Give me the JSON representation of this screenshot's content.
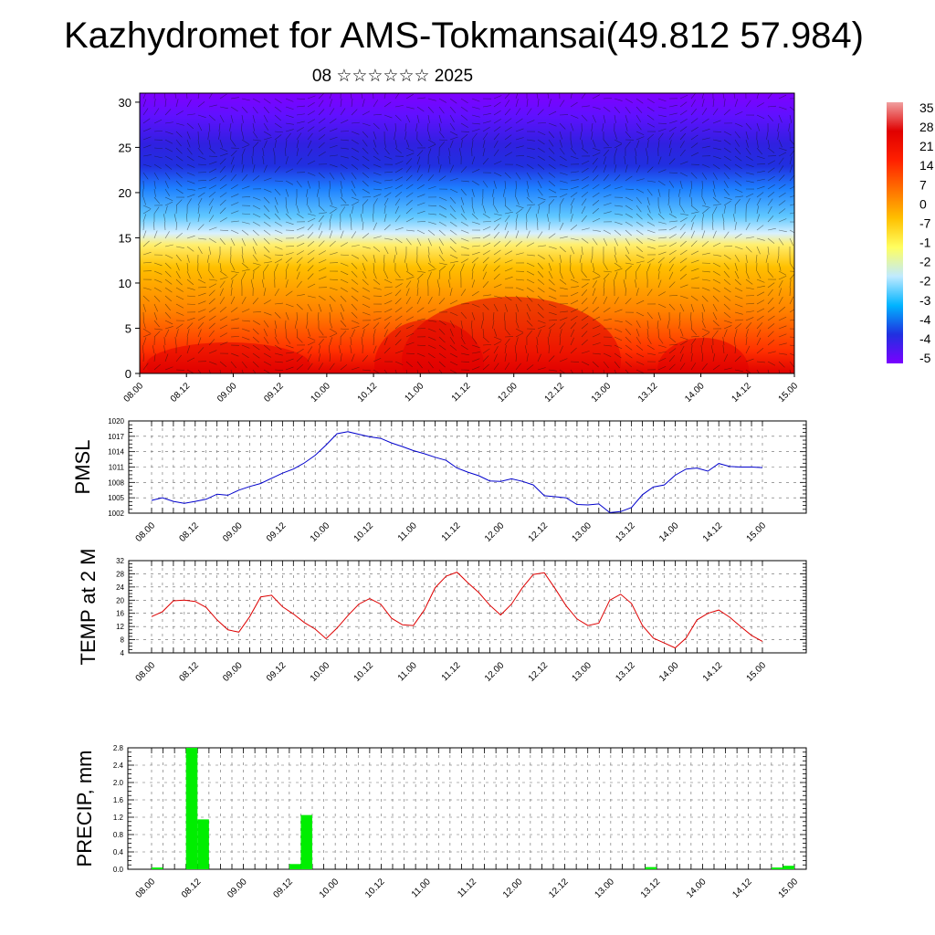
{
  "title": "Kazhydromet for AMS-Tokmansai(49.812 57.984)",
  "subtitle": "08 ☆☆☆☆☆☆ 2025",
  "colors": {
    "pmsl_line": "#0000cc",
    "temp_line": "#dd0000",
    "precip_bar": "#00ee00",
    "colorbar": [
      "#7a00ff",
      "#2030e0",
      "#00b4ff",
      "#bfeaff",
      "#ffff60",
      "#ffc000",
      "#ff7000",
      "#ff2000",
      "#e00000",
      "#f0a0a0"
    ]
  },
  "time_labels": [
    "08.00",
    "08.12",
    "09.00",
    "09.12",
    "10.00",
    "10.12",
    "11.00",
    "11.12",
    "12.00",
    "12.12",
    "13.00",
    "13.12",
    "14.00",
    "14.12",
    "15.00"
  ],
  "chart_data": [
    {
      "type": "heatmap",
      "panel": "vertical cross-section",
      "y_ticks": [
        "0",
        "5",
        "10",
        "15",
        "20",
        "25",
        "30"
      ],
      "ylim": [
        0,
        31
      ],
      "x_ticks": [
        "08.00",
        "08.12",
        "09.00",
        "09.12",
        "10.00",
        "10.12",
        "11.00",
        "11.12",
        "12.00",
        "12.12",
        "13.00",
        "13.12",
        "14.00",
        "14.12",
        "15.00"
      ],
      "colorbar_labels": [
        "35",
        "28",
        "21",
        "14",
        "7",
        "0",
        "-7",
        "-1",
        "-2",
        "-2",
        "-3",
        "-4",
        "-4",
        "-5"
      ],
      "vectors": "wind barbs overlay"
    },
    {
      "type": "line",
      "ylabel": "PMSL",
      "ylim": [
        1002,
        1020
      ],
      "y_ticks": [
        "1020",
        "1017",
        "1014",
        "1011",
        "1008",
        "1005",
        "1002"
      ],
      "x_ticks": [
        "08.00",
        "08.12",
        "09.00",
        "09.12",
        "10.00",
        "10.12",
        "11.00",
        "11.12",
        "12.00",
        "12.12",
        "13.00",
        "13.12",
        "14.00",
        "14.12",
        "15.00"
      ],
      "x": [
        0,
        0.125,
        0.25,
        0.375,
        0.5,
        0.625,
        0.75,
        0.875,
        1,
        1.125,
        1.25,
        1.375,
        1.5,
        1.625,
        1.75,
        1.875,
        2,
        2.125,
        2.25,
        2.375,
        2.5,
        2.625,
        2.75,
        2.875,
        3,
        3.125,
        3.25,
        3.375,
        3.5,
        3.625,
        3.75,
        3.875,
        4,
        4.125,
        4.25,
        4.375,
        4.5,
        4.625,
        4.75,
        4.875,
        5,
        5.125,
        5.25,
        5.375,
        5.5,
        5.625,
        5.75,
        5.875,
        6,
        6.125,
        6.25,
        6.375,
        6.5,
        6.625,
        6.75,
        6.875,
        7
      ],
      "values": [
        1004.5,
        1005.0,
        1004.3,
        1003.9,
        1004.3,
        1004.7,
        1005.7,
        1005.5,
        1006.5,
        1007.2,
        1007.8,
        1008.8,
        1009.8,
        1010.6,
        1011.8,
        1013.3,
        1015.3,
        1017.5,
        1017.9,
        1017.4,
        1016.9,
        1016.6,
        1015.7,
        1015.0,
        1014.2,
        1013.6,
        1012.9,
        1012.3,
        1010.8,
        1010.0,
        1009.3,
        1008.3,
        1008.2,
        1008.7,
        1008.2,
        1007.5,
        1005.4,
        1005.2,
        1005.0,
        1003.7,
        1003.6,
        1003.8,
        1002.1,
        1002.3,
        1003.1,
        1005.6,
        1007.1,
        1007.5,
        1009.4,
        1010.6,
        1010.8,
        1010.2,
        1011.7,
        1011.1,
        1011.0,
        1011.0,
        1010.9
      ]
    },
    {
      "type": "line",
      "ylabel": "TEMP at 2 M",
      "ylim": [
        4,
        32
      ],
      "y_ticks": [
        "32",
        "28",
        "24",
        "20",
        "16",
        "12",
        "8",
        "4"
      ],
      "x_ticks": [
        "08.00",
        "08.12",
        "09.00",
        "09.12",
        "10.00",
        "10.12",
        "11.00",
        "11.12",
        "12.00",
        "12.12",
        "13.00",
        "13.12",
        "14.00",
        "14.12",
        "15.00"
      ],
      "x": [
        0,
        0.125,
        0.25,
        0.375,
        0.5,
        0.625,
        0.75,
        0.875,
        1,
        1.125,
        1.25,
        1.375,
        1.5,
        1.625,
        1.75,
        1.875,
        2,
        2.125,
        2.25,
        2.375,
        2.5,
        2.625,
        2.75,
        2.875,
        3,
        3.125,
        3.25,
        3.375,
        3.5,
        3.625,
        3.75,
        3.875,
        4,
        4.125,
        4.25,
        4.375,
        4.5,
        4.625,
        4.75,
        4.875,
        5,
        5.125,
        5.25,
        5.375,
        5.5,
        5.625,
        5.75,
        5.875,
        6,
        6.125,
        6.25,
        6.375,
        6.5,
        6.625,
        6.75,
        6.875,
        7
      ],
      "values": [
        15,
        16.5,
        19.8,
        20.0,
        19.6,
        17.8,
        14.0,
        11.0,
        10.3,
        15.0,
        21.0,
        21.5,
        18.0,
        15.8,
        13.2,
        11.2,
        8.3,
        11.5,
        15.3,
        18.8,
        20.5,
        18.8,
        14.5,
        12.5,
        12.3,
        17.0,
        23.8,
        27.3,
        28.5,
        25.3,
        22.3,
        18.5,
        15.5,
        18.8,
        23.8,
        27.8,
        28.3,
        23.5,
        18.3,
        14.3,
        12.3,
        13.0,
        20.0,
        21.8,
        19.0,
        12.3,
        8.5,
        7.0,
        5.5,
        8.5,
        14.0,
        16.0,
        17.0,
        14.8,
        12.0,
        9.3,
        7.5
      ]
    },
    {
      "type": "bar",
      "ylabel": "PRECIP, mm",
      "ylim": [
        0,
        2.8
      ],
      "y_ticks": [
        "2.8",
        "2.4",
        "2.0",
        "1.6",
        "1.2",
        "0.8",
        "0.4",
        "0.0"
      ],
      "x_ticks": [
        "08.00",
        "08.12",
        "09.00",
        "09.12",
        "10.00",
        "10.12",
        "11.00",
        "11.12",
        "12.00",
        "12.12",
        "13.00",
        "13.12",
        "14.00",
        "14.12",
        "15.00"
      ],
      "x": [
        0,
        0.125,
        0.25,
        0.375,
        0.5,
        0.625,
        0.75,
        0.875,
        1,
        1.125,
        1.25,
        1.375,
        1.5,
        1.625,
        1.75,
        1.875,
        2,
        2.125,
        2.25,
        2.375,
        2.5,
        2.625,
        2.75,
        2.875,
        3,
        3.125,
        3.25,
        3.375,
        3.5,
        3.625,
        3.75,
        3.875,
        4,
        4.125,
        4.25,
        4.375,
        4.5,
        4.625,
        4.75,
        4.875,
        5,
        5.125,
        5.25,
        5.375,
        5.5,
        5.625,
        5.75,
        5.875,
        6,
        6.125,
        6.25,
        6.375,
        6.5,
        6.625,
        6.75,
        6.875
      ],
      "values": [
        0.04,
        0,
        0,
        2.8,
        1.15,
        0,
        0,
        0,
        0,
        0,
        0,
        0,
        0.12,
        1.25,
        0,
        0,
        0,
        0,
        0,
        0,
        0,
        0,
        0,
        0,
        0,
        0,
        0,
        0,
        0,
        0,
        0,
        0,
        0,
        0,
        0,
        0,
        0,
        0,
        0,
        0,
        0,
        0,
        0,
        0.05,
        0,
        0,
        0,
        0,
        0,
        0,
        0,
        0,
        0,
        0,
        0.04,
        0.08
      ]
    }
  ]
}
